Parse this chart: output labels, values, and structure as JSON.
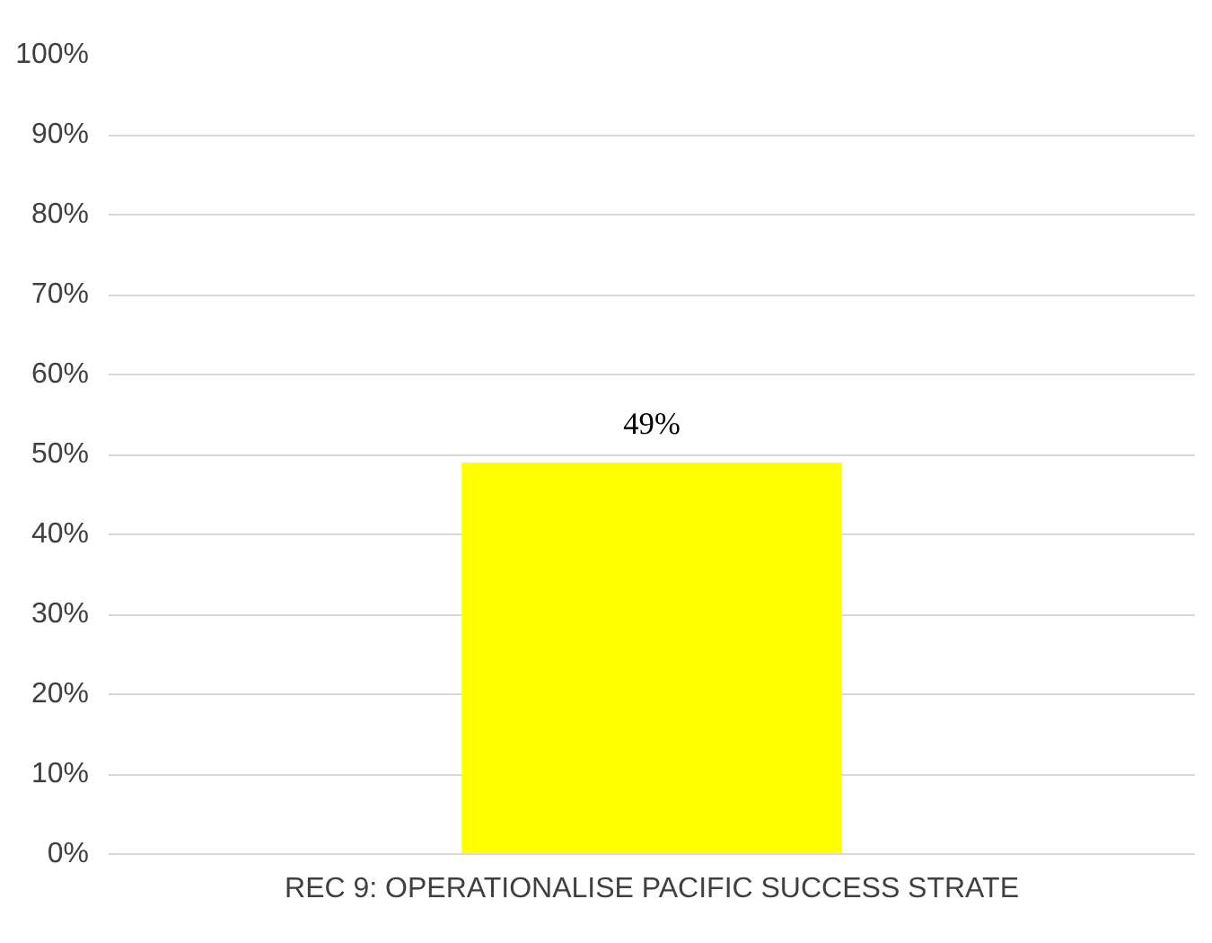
{
  "chart_data": {
    "type": "bar",
    "categories": [
      "REC 9: OPERATIONALISE PACIFIC SUCCESS STRATE"
    ],
    "values": [
      49
    ],
    "value_labels": [
      "49%"
    ],
    "color": "#ffff00",
    "ylim": [
      0,
      100
    ],
    "yticks": [
      {
        "value": 0,
        "label": "0%"
      },
      {
        "value": 10,
        "label": "10%"
      },
      {
        "value": 20,
        "label": "20%"
      },
      {
        "value": 30,
        "label": "30%"
      },
      {
        "value": 40,
        "label": "40%"
      },
      {
        "value": 50,
        "label": "50%"
      },
      {
        "value": 60,
        "label": "60%"
      },
      {
        "value": 70,
        "label": "70%"
      },
      {
        "value": 80,
        "label": "80%"
      },
      {
        "value": 90,
        "label": "90%"
      },
      {
        "value": 100,
        "label": "100%"
      }
    ],
    "grid": "y"
  }
}
